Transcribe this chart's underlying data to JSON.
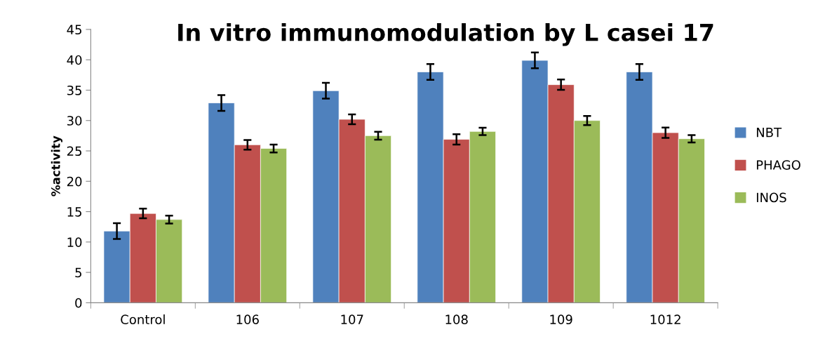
{
  "chart_data": {
    "type": "bar",
    "title": "In vitro immunomodulation by L casei 17",
    "ylabel": "%activity",
    "categories": [
      "Control",
      "106",
      "107",
      "108",
      "109",
      "1012"
    ],
    "series": [
      {
        "name": "NBT",
        "color": "#4f81bd",
        "values": [
          11.8,
          32.9,
          34.9,
          38.0,
          39.9,
          38.0
        ],
        "errors": [
          1.3,
          1.3,
          1.3,
          1.3,
          1.3,
          1.3
        ]
      },
      {
        "name": "PHAGO",
        "color": "#c0504d",
        "values": [
          14.7,
          26.0,
          30.2,
          26.9,
          35.9,
          28.0
        ],
        "errors": [
          0.8,
          0.8,
          0.8,
          0.85,
          0.85,
          0.85
        ]
      },
      {
        "name": "INOS",
        "color": "#9bbb59",
        "values": [
          13.7,
          25.4,
          27.5,
          28.2,
          30.0,
          27.0
        ],
        "errors": [
          0.65,
          0.65,
          0.65,
          0.6,
          0.75,
          0.6
        ]
      }
    ],
    "ylim": [
      0,
      45
    ],
    "yticks": [
      0,
      5,
      10,
      15,
      20,
      25,
      30,
      35,
      40,
      45
    ],
    "grid": false,
    "legend": "right"
  }
}
